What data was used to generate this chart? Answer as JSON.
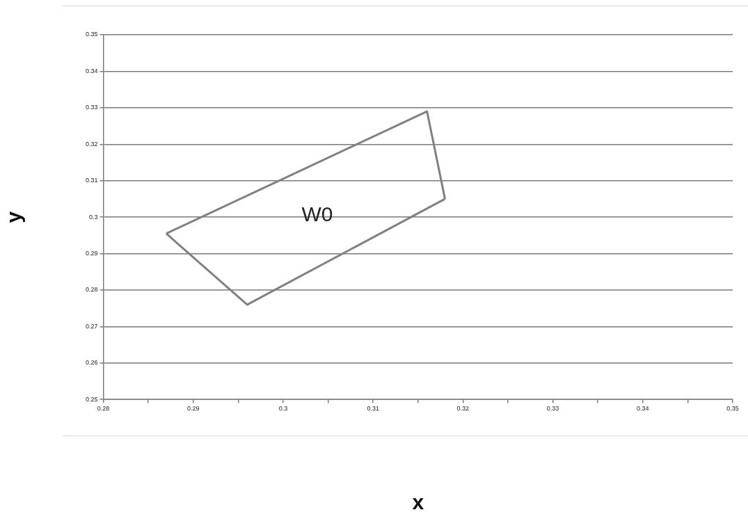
{
  "chart_data": {
    "type": "line",
    "xlabel": "x",
    "ylabel": "y",
    "series": [
      {
        "color": "#808080",
        "x": [
          0.287,
          0.316,
          0.318
        ],
        "values": [
          0.2955,
          0.329,
          0.305
        ]
      },
      {
        "color": "#808080",
        "x": [
          0.287,
          0.296,
          0.318
        ],
        "values": [
          0.2955,
          0.276,
          0.305
        ]
      }
    ],
    "xlim": [
      0.28,
      0.35
    ],
    "xticks": [
      0.28,
      {
        "value": 0.285,
        "label": null
      },
      0.29,
      {
        "value": 0.295,
        "label": null
      },
      0.3,
      {
        "value": 0.305,
        "label": null
      },
      0.31,
      {
        "value": 0.315,
        "label": null
      },
      0.32,
      {
        "value": 0.325,
        "label": null
      },
      0.33,
      {
        "value": 0.335,
        "label": null
      },
      0.34,
      {
        "value": 0.345,
        "label": null
      },
      0.35
    ],
    "ylim": [
      0.25,
      0.35
    ],
    "yticks": [
      0.25,
      0.26,
      0.27,
      0.28,
      0.29,
      0.3,
      0.31,
      0.32,
      0.33,
      0.34,
      0.35
    ],
    "grid": "y",
    "legend": false,
    "marker": "none",
    "line_style": "solid",
    "annotations": [
      "W0"
    ]
  }
}
